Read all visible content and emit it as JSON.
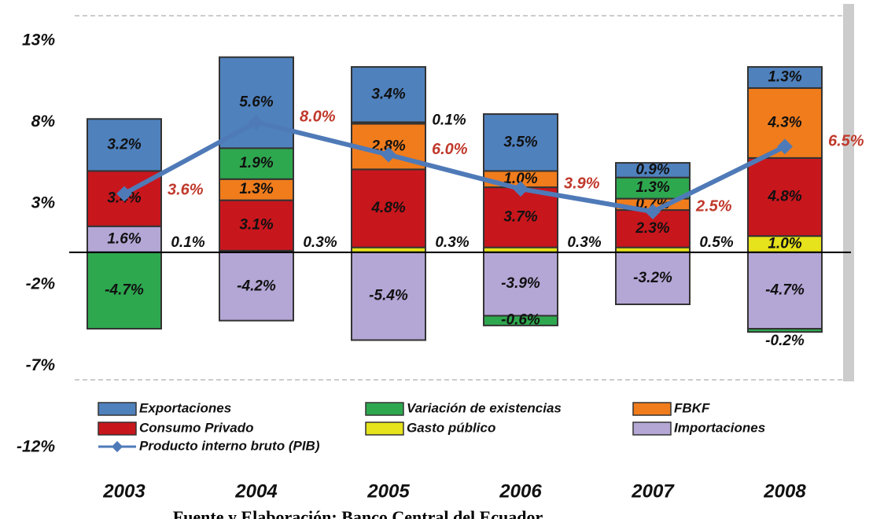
{
  "chart_data": {
    "type": "bar",
    "categories": [
      "2003",
      "2004",
      "2005",
      "2006",
      "2007",
      "2008"
    ],
    "ylim": [
      -12,
      13
    ],
    "yticks": [
      {
        "value": 13,
        "label": "13%"
      },
      {
        "value": 8,
        "label": "8%"
      },
      {
        "value": 3,
        "label": "3%"
      },
      {
        "value": -2,
        "label": "-2%"
      },
      {
        "value": -7,
        "label": "-7%"
      },
      {
        "value": -12,
        "label": "-12%"
      }
    ],
    "series": [
      {
        "name": "Exportaciones",
        "color": "#4f81bd",
        "values": [
          3.2,
          5.6,
          3.4,
          3.5,
          0.9,
          1.3
        ],
        "value_labels": [
          "3.2%",
          "5.6%",
          "3.4%",
          "3.5%",
          "0.9%",
          "1.3%"
        ]
      },
      {
        "name": "Variación de existencias",
        "color": "#2ea84f",
        "values": [
          -4.7,
          1.9,
          0.1,
          -0.6,
          1.3,
          -0.2
        ],
        "value_labels": [
          "-4.7%",
          "1.9%",
          "0.1%",
          "-0.6%",
          "1.3%",
          "-0.2%"
        ]
      },
      {
        "name": "FBKF",
        "color": "#f07c1c",
        "values": [
          null,
          1.3,
          2.8,
          1.0,
          0.7,
          4.3
        ],
        "value_labels": [
          null,
          "1.3%",
          "2.8%",
          "1.0%",
          "0.7%",
          "4.3%"
        ]
      },
      {
        "name": "Consumo Privado",
        "color": "#c8161d",
        "values": [
          3.4,
          3.1,
          4.8,
          3.7,
          2.3,
          4.8
        ],
        "value_labels": [
          "3.4%",
          "3.1%",
          "4.8%",
          "3.7%",
          "2.3%",
          "4.8%"
        ]
      },
      {
        "name": "Gasto público",
        "color": "#e6e21b",
        "values": [
          null,
          0.1,
          0.3,
          0.3,
          0.3,
          1.0
        ],
        "value_labels": [
          null,
          "0.1%",
          "0.3%",
          "0.3%",
          "0.3%",
          "1.0%"
        ]
      },
      {
        "name": "Importaciones",
        "color": "#b4a7d6",
        "values": [
          1.6,
          -4.2,
          -5.4,
          -3.9,
          -3.2,
          -4.7
        ],
        "value_labels": [
          "1.6%",
          "-4.2%",
          "-5.4%",
          "-3.9%",
          "-3.2%",
          "-4.7%"
        ]
      },
      {
        "name": "Producto interno bruto (PIB)",
        "type": "line",
        "color": "#4f7ab8",
        "values": [
          3.6,
          8.0,
          6.0,
          3.9,
          2.5,
          6.5
        ],
        "value_labels": [
          "3.6%",
          "8.0%",
          "6.0%",
          "3.9%",
          "2.5%",
          "6.5%"
        ]
      }
    ],
    "annotations": [
      "0.5%"
    ],
    "source": "Fuente y Elaboración: Banco Central del Ecuador"
  }
}
